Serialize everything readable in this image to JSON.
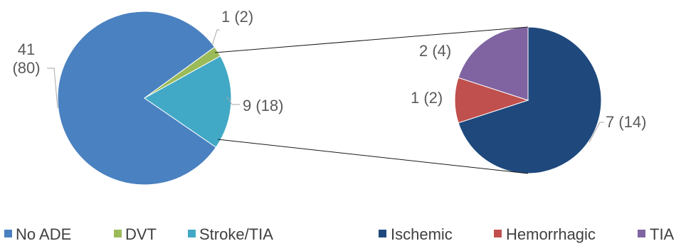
{
  "chart_data": [
    {
      "type": "pie",
      "slices": [
        {
          "name": "No ADE",
          "value": 41,
          "percent": 80,
          "label": "41 (80)",
          "color": "#4a81c0"
        },
        {
          "name": "DVT",
          "value": 1,
          "percent": 2,
          "label": "1 (2)",
          "color": "#9bbb59"
        },
        {
          "name": "Stroke/TIA",
          "value": 9,
          "percent": 18,
          "label": "9 (18)",
          "color": "#41a9c6"
        }
      ],
      "exploded_slice": "Stroke/TIA",
      "legend_position": "bottom"
    },
    {
      "type": "pie",
      "slices": [
        {
          "name": "Ischemic",
          "value": 7,
          "percent": 14,
          "label": "7 (14)",
          "color": "#1f497d"
        },
        {
          "name": "Hemorrhagic",
          "value": 1,
          "percent": 2,
          "label": "1 (2)",
          "color": "#c0504d"
        },
        {
          "name": "TIA",
          "value": 2,
          "percent": 4,
          "label": "2 (4)",
          "color": "#8064a2"
        }
      ],
      "legend_position": "bottom"
    }
  ],
  "label_lines": {
    "no_ade_line1": "41",
    "no_ade_line2": "(80)"
  }
}
